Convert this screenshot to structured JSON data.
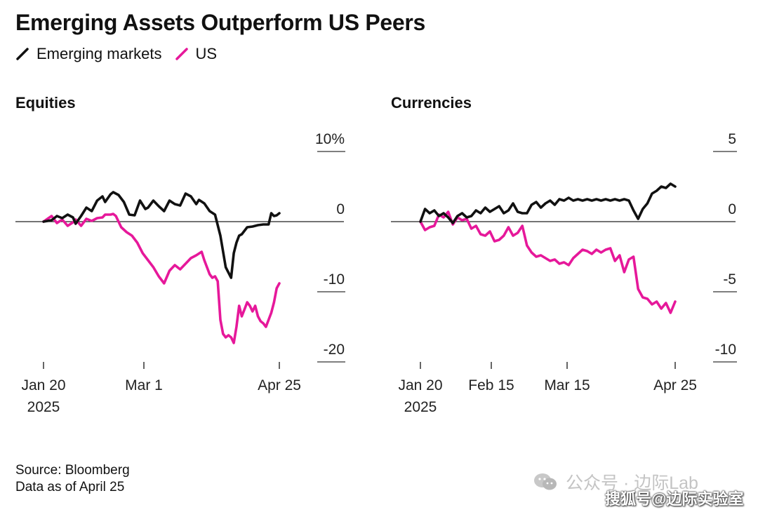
{
  "title": "Emerging Assets Outperform US Peers",
  "legend": [
    {
      "name": "Emerging markets",
      "color": "#111111"
    },
    {
      "name": "US",
      "color": "#e6189a"
    }
  ],
  "source_line1": "Source: Bloomberg",
  "source_line2": "Data as of April 25",
  "watermark": {
    "line1": "公众号 · 边际Lab",
    "line2": "搜狐号@边际实验室"
  },
  "chart_data": [
    {
      "type": "line",
      "title": "Equities",
      "x_ticks": [
        "Jan 20",
        "Mar 1",
        "Apr 25"
      ],
      "x_year": "2025",
      "y_ticks": [
        "10%",
        "0",
        "-10",
        "-20"
      ],
      "ylim": [
        -20,
        10
      ],
      "grid": false,
      "series": [
        {
          "name": "Emerging markets",
          "color": "#111111",
          "x": [
            0,
            3,
            5,
            7,
            9,
            11,
            12,
            14,
            16,
            18,
            20,
            22,
            23,
            25,
            26,
            28,
            30,
            32,
            34,
            36,
            38,
            39,
            41,
            43,
            45,
            47,
            49,
            51,
            53,
            55,
            57,
            58,
            60,
            62,
            64,
            66,
            68,
            70,
            71,
            72,
            73,
            74,
            76,
            78,
            80,
            82,
            84,
            85,
            86,
            87,
            88
          ],
          "y": [
            0,
            0.2,
            0.8,
            0.5,
            1.0,
            0.6,
            -0.3,
            0.8,
            2.0,
            1.5,
            3.0,
            3.6,
            2.8,
            3.9,
            4.2,
            3.8,
            2.8,
            1.0,
            0.9,
            3.0,
            1.8,
            2.0,
            3.0,
            2.2,
            1.5,
            3.0,
            2.5,
            2.3,
            4.0,
            3.6,
            2.5,
            3.1,
            2.6,
            1.5,
            1.0,
            -2.0,
            -6.5,
            -8.0,
            -4.5,
            -3.0,
            -2.0,
            -1.8,
            -0.8,
            -0.7,
            -0.5,
            -0.4,
            -0.4,
            1.2,
            0.8,
            0.9,
            1.2
          ]
        },
        {
          "name": "US",
          "color": "#e6189a",
          "x": [
            0,
            3,
            5,
            7,
            9,
            11,
            12,
            14,
            16,
            18,
            20,
            22,
            23,
            25,
            26,
            27,
            29,
            31,
            33,
            35,
            37,
            39,
            41,
            43,
            45,
            47,
            49,
            51,
            53,
            55,
            57,
            59,
            60,
            61,
            62,
            63,
            64,
            65,
            66,
            67,
            68,
            69,
            70,
            71,
            72,
            73,
            74,
            75,
            76,
            77,
            78,
            79,
            80,
            81,
            82,
            83,
            84,
            85,
            86,
            87,
            88
          ],
          "y": [
            0,
            0.8,
            -0.2,
            0.3,
            -0.6,
            -0.1,
            0.3,
            -0.6,
            0.4,
            0.1,
            0.5,
            0.6,
            1.0,
            1.0,
            1.1,
            0.8,
            -0.8,
            -1.5,
            -2.0,
            -3.0,
            -4.5,
            -5.5,
            -6.5,
            -7.8,
            -8.8,
            -7.0,
            -6.2,
            -6.8,
            -6.0,
            -5.2,
            -4.8,
            -4.3,
            -5.5,
            -6.5,
            -7.5,
            -8.0,
            -7.8,
            -8.5,
            -14.0,
            -16.0,
            -16.5,
            -16.2,
            -16.5,
            -17.3,
            -15.0,
            -12.0,
            -13.5,
            -12.5,
            -11.5,
            -12.0,
            -12.8,
            -12.0,
            -13.5,
            -14.2,
            -14.5,
            -15.0,
            -14.0,
            -13.0,
            -11.5,
            -9.5,
            -8.8
          ]
        }
      ]
    },
    {
      "type": "line",
      "title": "Currencies",
      "x_ticks": [
        "Jan 20",
        "Feb 15",
        "Mar 15",
        "Apr 25"
      ],
      "x_year": "2025",
      "y_ticks": [
        "5",
        "0",
        "-5",
        "-10"
      ],
      "ylim": [
        -10,
        5
      ],
      "grid": false,
      "series": [
        {
          "name": "Emerging markets",
          "color": "#111111",
          "x": [
            0,
            2,
            4,
            6,
            8,
            10,
            12,
            14,
            16,
            18,
            20,
            22,
            24,
            26,
            28,
            30,
            32,
            34,
            36,
            38,
            40,
            42,
            44,
            46,
            48,
            50,
            52,
            54,
            56,
            58,
            60,
            62,
            64,
            66,
            68,
            70,
            72,
            74,
            76,
            78,
            80,
            82,
            84,
            86,
            88,
            90,
            92,
            94,
            96,
            98,
            100,
            102,
            104,
            106,
            108,
            110
          ],
          "y": [
            0,
            0.9,
            0.6,
            0.8,
            0.4,
            0.6,
            0.3,
            -0.1,
            0.4,
            0.6,
            0.3,
            0.4,
            0.8,
            0.6,
            1.0,
            0.7,
            0.9,
            1.1,
            0.6,
            0.8,
            1.3,
            0.7,
            0.6,
            0.6,
            1.2,
            1.4,
            1.0,
            1.3,
            1.5,
            1.2,
            1.6,
            1.5,
            1.7,
            1.5,
            1.6,
            1.5,
            1.6,
            1.5,
            1.6,
            1.5,
            1.6,
            1.5,
            1.6,
            1.5,
            1.6,
            1.5,
            0.8,
            0.2,
            0.9,
            1.3,
            2.0,
            2.2,
            2.5,
            2.4,
            2.7,
            2.5
          ]
        },
        {
          "name": "US",
          "color": "#e6189a",
          "x": [
            0,
            2,
            4,
            6,
            8,
            10,
            12,
            14,
            16,
            18,
            20,
            22,
            24,
            26,
            28,
            30,
            32,
            34,
            36,
            38,
            40,
            42,
            44,
            46,
            48,
            50,
            52,
            54,
            56,
            58,
            60,
            62,
            64,
            66,
            68,
            70,
            72,
            74,
            76,
            78,
            80,
            82,
            84,
            86,
            88,
            90,
            92,
            94,
            96,
            98,
            100,
            102,
            104,
            106,
            108,
            110
          ],
          "y": [
            0,
            -0.6,
            -0.4,
            -0.3,
            0.5,
            0.3,
            0.7,
            -0.2,
            0.3,
            0.1,
            0.2,
            -0.5,
            -0.3,
            -0.9,
            -1.0,
            -0.7,
            -1.4,
            -1.3,
            -1.0,
            -0.4,
            -1.0,
            -0.8,
            -0.3,
            -1.7,
            -2.2,
            -2.5,
            -2.4,
            -2.6,
            -2.8,
            -2.7,
            -3.0,
            -2.9,
            -3.1,
            -2.6,
            -2.3,
            -2.0,
            -2.1,
            -2.3,
            -2.0,
            -2.2,
            -2.0,
            -1.9,
            -2.8,
            -2.4,
            -3.6,
            -2.7,
            -2.5,
            -4.8,
            -5.4,
            -5.5,
            -5.9,
            -5.7,
            -6.2,
            -5.8,
            -6.5,
            -5.7
          ]
        }
      ]
    }
  ]
}
